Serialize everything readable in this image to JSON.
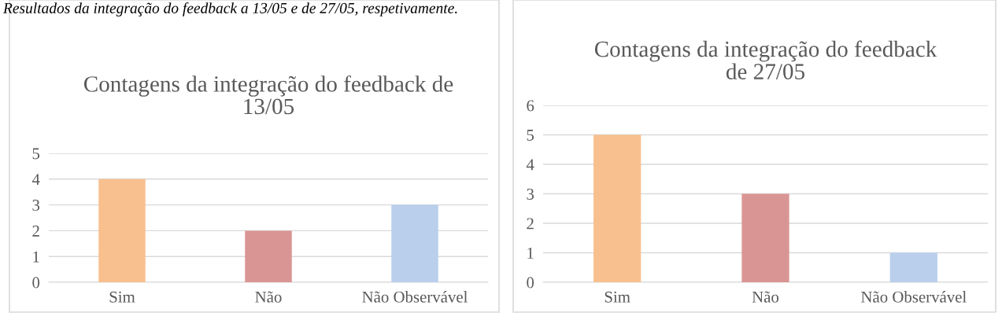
{
  "chart_data": [
    {
      "type": "bar",
      "title": "Contagens da integração do feedback de\n13/05",
      "categories": [
        "Sim",
        "Não",
        "Não Observável"
      ],
      "values": [
        4,
        2,
        3
      ],
      "colors": [
        "#f8c08f",
        "#d99594",
        "#b9cfec"
      ],
      "ylim": [
        0,
        5
      ],
      "yticks": [
        0,
        1,
        2,
        3,
        4,
        5
      ],
      "grid": "y",
      "annotations": [
        "Resultados da integração do feedback a 13/05 e de 27/05, respetivamente."
      ]
    },
    {
      "type": "bar",
      "title": "Contagens da integração do feedback\nde 27/05",
      "categories": [
        "Sim",
        "Não",
        "Não Observável"
      ],
      "values": [
        5,
        3,
        1
      ],
      "colors": [
        "#f8c08f",
        "#d99594",
        "#b9cfec"
      ],
      "ylim": [
        0,
        6
      ],
      "yticks": [
        0,
        1,
        2,
        3,
        4,
        5,
        6
      ],
      "grid": "y"
    }
  ]
}
